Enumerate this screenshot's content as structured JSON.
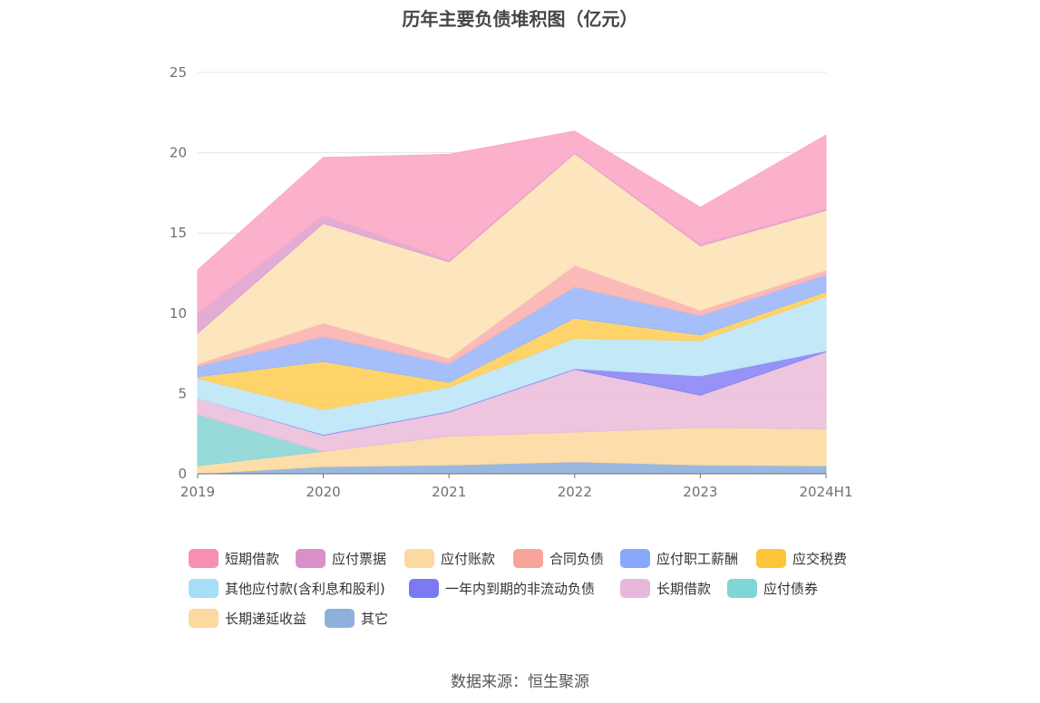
{
  "title": "历年主要负债堆积图（亿元）",
  "source": "数据来源：恒生聚源",
  "chart_data": {
    "type": "area",
    "stacked": true,
    "title": "历年主要负债堆积图（亿元）",
    "x": [
      "2019",
      "2020",
      "2021",
      "2022",
      "2023",
      "2024H1"
    ],
    "ylim": [
      0,
      25
    ],
    "yticks": [
      0,
      5,
      10,
      15,
      20,
      25
    ],
    "grid": true,
    "legend_position": "bottom",
    "series": [
      {
        "name": "其它",
        "color": "#8eb0dc",
        "values": [
          0.0,
          0.45,
          0.55,
          0.75,
          0.55,
          0.5
        ]
      },
      {
        "name": "长期递延收益",
        "color": "#fdd9a0",
        "values": [
          0.5,
          0.95,
          1.8,
          1.85,
          2.35,
          2.3
        ]
      },
      {
        "name": "应付债券",
        "color": "#8dd6d6",
        "values": [
          3.2,
          0.0,
          0.0,
          0.0,
          0.0,
          0.0
        ]
      },
      {
        "name": "长期借款",
        "color": "#ebbfdc",
        "values": [
          1.0,
          1.0,
          1.5,
          3.9,
          2.0,
          4.8
        ]
      },
      {
        "name": "一年内到期的非流动负债",
        "color": "#8b86f5",
        "values": [
          0.0,
          0.05,
          0.05,
          0.05,
          1.2,
          0.05
        ]
      },
      {
        "name": "其他应付款(含利息和股利)",
        "color": "#bde6f7",
        "values": [
          1.25,
          1.55,
          1.5,
          1.9,
          2.2,
          3.4
        ]
      },
      {
        "name": "应交税费",
        "color": "#fecf5a",
        "values": [
          0.1,
          3.0,
          0.3,
          1.25,
          0.35,
          0.3
        ]
      },
      {
        "name": "应付职工薪酬",
        "color": "#9cb8fb",
        "values": [
          0.65,
          1.55,
          1.15,
          1.95,
          1.2,
          1.05
        ]
      },
      {
        "name": "合同负债",
        "color": "#f9b4b0",
        "values": [
          0.15,
          0.85,
          0.35,
          1.35,
          0.35,
          0.3
        ]
      },
      {
        "name": "应付账款",
        "color": "#fde3b7",
        "values": [
          1.9,
          6.2,
          6.0,
          6.95,
          4.0,
          3.7
        ]
      },
      {
        "name": "应付票据",
        "color": "#e0a3cf",
        "values": [
          1.25,
          0.5,
          0.1,
          0.05,
          0.1,
          0.1
        ]
      },
      {
        "name": "短期借款",
        "color": "#fba8c7",
        "values": [
          2.7,
          3.6,
          6.6,
          1.35,
          2.3,
          4.6
        ]
      }
    ],
    "legend_order": [
      "短期借款",
      "应付票据",
      "应付账款",
      "合同负债",
      "应付职工薪酬",
      "应交税费",
      "其他应付款(含利息和股利)",
      "一年内到期的非流动负债",
      "长期借款",
      "应付债券",
      "长期递延收益",
      "其它"
    ],
    "legend_colors": {
      "短期借款": "#f78fb3",
      "应付票据": "#da8fc8",
      "应付账款": "#fdd8a0",
      "合同负债": "#f8a49a",
      "应付职工薪酬": "#88a8fb",
      "应交税费": "#fdc53a",
      "其他应付款(含利息和股利)": "#a6def7",
      "一年内到期的非流动负债": "#7b7af2",
      "长期借款": "#e8b8dc",
      "应付债券": "#80d5d5",
      "长期递延收益": "#fdd8a0",
      "其它": "#8eb0dc"
    }
  }
}
